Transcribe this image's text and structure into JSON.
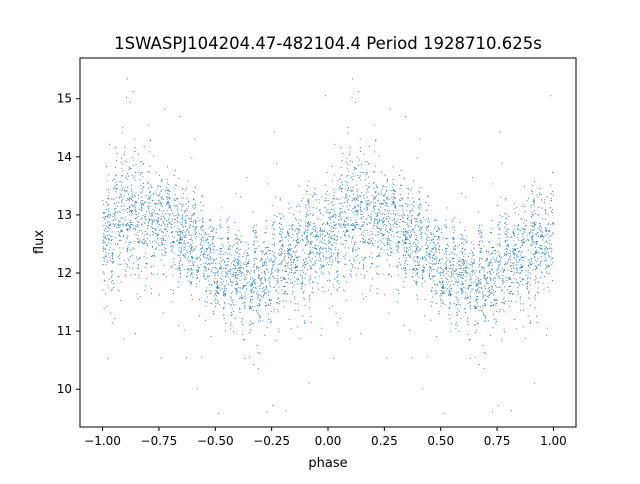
{
  "chart_data": {
    "type": "scatter",
    "title": "1SWASPJ104204.47-482104.4 Period 1928710.625s",
    "xlabel": "phase",
    "ylabel": "flux",
    "xlim": [
      -1.1,
      1.1
    ],
    "ylim": [
      9.35,
      15.7
    ],
    "xticks": [
      -1.0,
      -0.75,
      -0.5,
      -0.25,
      0.0,
      0.25,
      0.5,
      0.75,
      1.0
    ],
    "xtick_labels": [
      "−1.00",
      "−0.75",
      "−0.50",
      "−0.25",
      "0.00",
      "0.25",
      "0.50",
      "0.75",
      "1.00"
    ],
    "yticks": [
      10,
      11,
      12,
      13,
      14,
      15
    ],
    "ytick_labels": [
      "10",
      "11",
      "12",
      "13",
      "14",
      "15"
    ],
    "grid": false,
    "marker_color": "#1f77b4",
    "profile": {
      "description_phase": [
        0.0,
        0.05,
        0.1,
        0.15,
        0.2,
        0.25,
        0.3,
        0.35,
        0.4,
        0.45,
        0.5,
        0.55,
        0.6,
        0.65,
        0.7,
        0.75,
        0.8,
        0.85,
        0.9,
        0.95,
        1.0
      ],
      "median_flux": [
        12.5,
        12.8,
        13.0,
        12.9,
        12.9,
        12.8,
        12.8,
        12.6,
        12.5,
        12.3,
        12.1,
        12.0,
        12.0,
        11.9,
        11.9,
        12.0,
        12.2,
        12.3,
        12.4,
        12.6,
        12.5
      ],
      "spread": [
        0.55,
        0.6,
        0.65,
        0.6,
        0.55,
        0.5,
        0.45,
        0.45,
        0.45,
        0.45,
        0.45,
        0.45,
        0.45,
        0.45,
        0.5,
        0.5,
        0.5,
        0.5,
        0.55,
        0.55,
        0.55
      ]
    }
  }
}
